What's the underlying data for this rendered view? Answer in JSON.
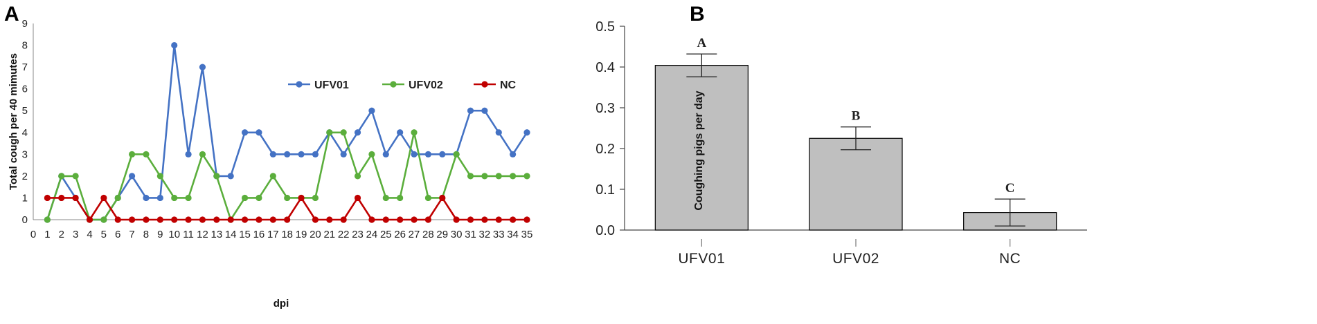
{
  "chart_data": [
    {
      "type": "line",
      "panel_label": "A",
      "title": "",
      "xlabel": "dpi",
      "ylabel": "Total cough per 40 mimutes",
      "xlim": [
        0,
        35
      ],
      "ylim": [
        0,
        9
      ],
      "x_ticks": [
        0,
        1,
        2,
        3,
        4,
        5,
        6,
        7,
        8,
        9,
        10,
        11,
        12,
        13,
        14,
        15,
        16,
        17,
        18,
        19,
        20,
        21,
        22,
        23,
        24,
        25,
        26,
        27,
        28,
        29,
        30,
        31,
        32,
        33,
        34,
        35
      ],
      "y_ticks": [
        0,
        1,
        2,
        3,
        4,
        5,
        6,
        7,
        8,
        9
      ],
      "x": [
        1,
        2,
        3,
        4,
        5,
        6,
        7,
        8,
        9,
        10,
        11,
        12,
        13,
        14,
        15,
        16,
        17,
        18,
        19,
        20,
        21,
        22,
        23,
        24,
        25,
        26,
        27,
        28,
        29,
        30,
        31,
        32,
        33,
        34,
        35
      ],
      "legend_position": "upper-right-inside",
      "series": [
        {
          "name": "UFV01",
          "color": "#4472C4",
          "values": [
            0,
            2,
            1,
            0,
            0,
            1,
            2,
            1,
            1,
            8,
            3,
            7,
            2,
            2,
            4,
            4,
            3,
            3,
            3,
            3,
            4,
            3,
            4,
            5,
            3,
            4,
            3,
            3,
            3,
            3,
            5,
            5,
            4,
            3,
            4
          ]
        },
        {
          "name": "UFV02",
          "color": "#5BAE3C",
          "values": [
            0,
            2,
            2,
            0,
            0,
            1,
            3,
            3,
            2,
            1,
            1,
            3,
            2,
            0,
            1,
            1,
            2,
            1,
            1,
            1,
            4,
            4,
            2,
            3,
            1,
            1,
            4,
            1,
            1,
            3,
            2,
            2,
            2,
            2,
            2
          ]
        },
        {
          "name": "NC",
          "color": "#C00000",
          "values": [
            1,
            1,
            1,
            0,
            1,
            0,
            0,
            0,
            0,
            0,
            0,
            0,
            0,
            0,
            0,
            0,
            0,
            0,
            1,
            0,
            0,
            0,
            1,
            0,
            0,
            0,
            0,
            0,
            1,
            0,
            0,
            0,
            0,
            0,
            0
          ]
        }
      ]
    },
    {
      "type": "bar",
      "panel_label": "B",
      "title": "",
      "xlabel": "",
      "ylabel": "Coughing pigs per day",
      "ylim": [
        0,
        0.5
      ],
      "y_ticks": [
        "0.0",
        "0.1",
        "0.2",
        "0.3",
        "0.4",
        "0.5"
      ],
      "categories": [
        "UFV01",
        "UFV02",
        "NC"
      ],
      "values": [
        0.404,
        0.225,
        0.043
      ],
      "error": [
        0.028,
        0.028,
        0.033
      ],
      "significance_letters": [
        "A",
        "B",
        "C"
      ],
      "bar_color": "#BFBFBF",
      "bar_edge_color": "#000000"
    }
  ]
}
